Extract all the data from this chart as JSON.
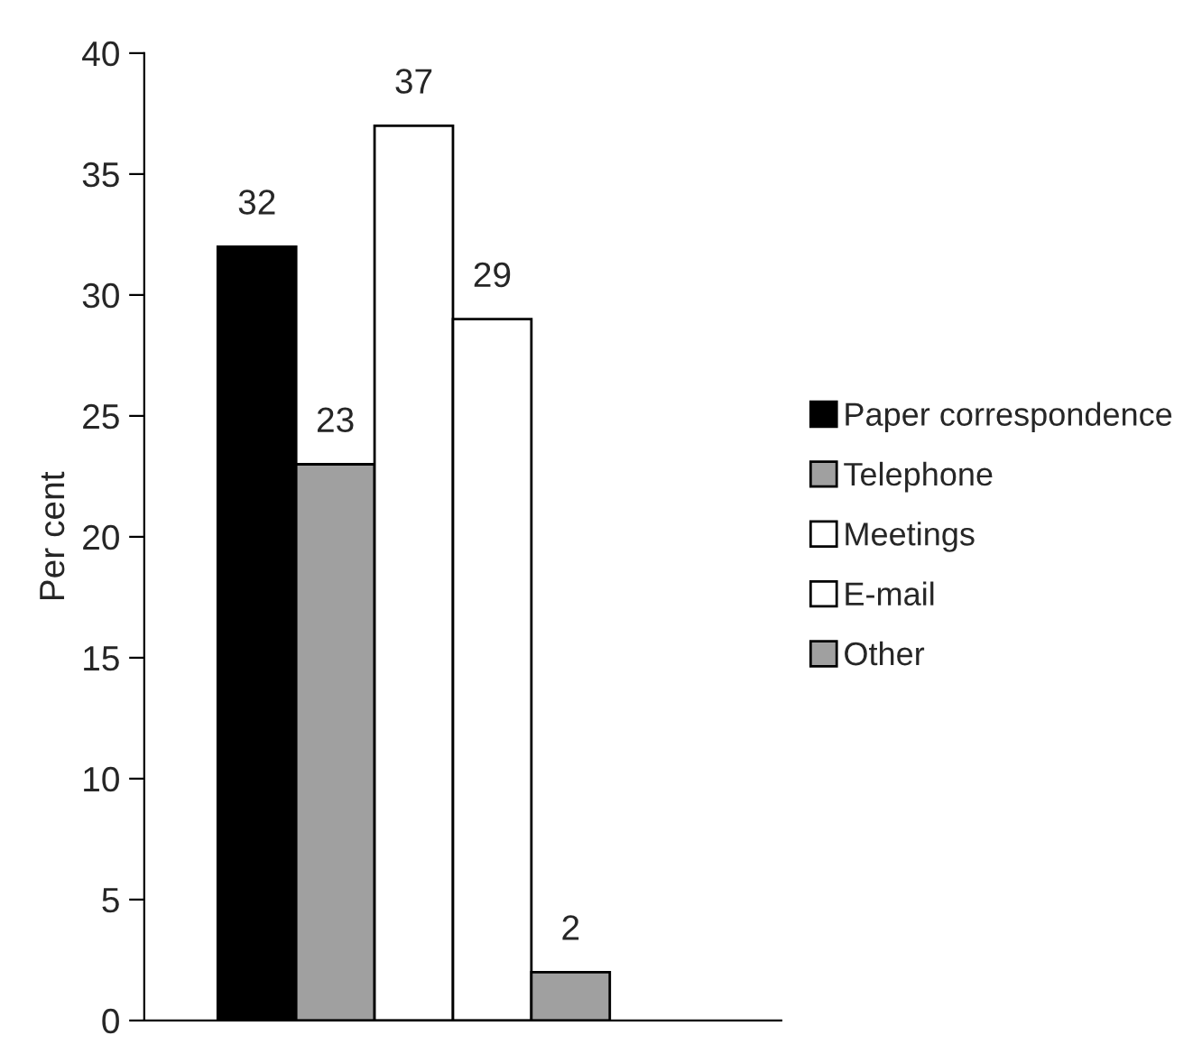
{
  "chart_data": {
    "type": "bar",
    "ylabel": "Per cent",
    "categories": [
      null
    ],
    "series": [
      {
        "name": "Paper correspondence",
        "color": "#000000",
        "values": [
          32
        ]
      },
      {
        "name": "Telephone",
        "color": "#a0a0a0",
        "values": [
          23
        ]
      },
      {
        "name": "Meetings",
        "color": "#ffffff",
        "values": [
          37
        ]
      },
      {
        "name": "E-mail",
        "color": "#ffffff",
        "values": [
          29
        ]
      },
      {
        "name": "Other",
        "color": "#a0a0a0",
        "values": [
          2
        ]
      }
    ],
    "ylim": [
      0,
      40
    ],
    "yticks": [
      0,
      5,
      10,
      15,
      20,
      25,
      30,
      35,
      40
    ],
    "data_labels": true,
    "grid": false,
    "legend": "right"
  }
}
